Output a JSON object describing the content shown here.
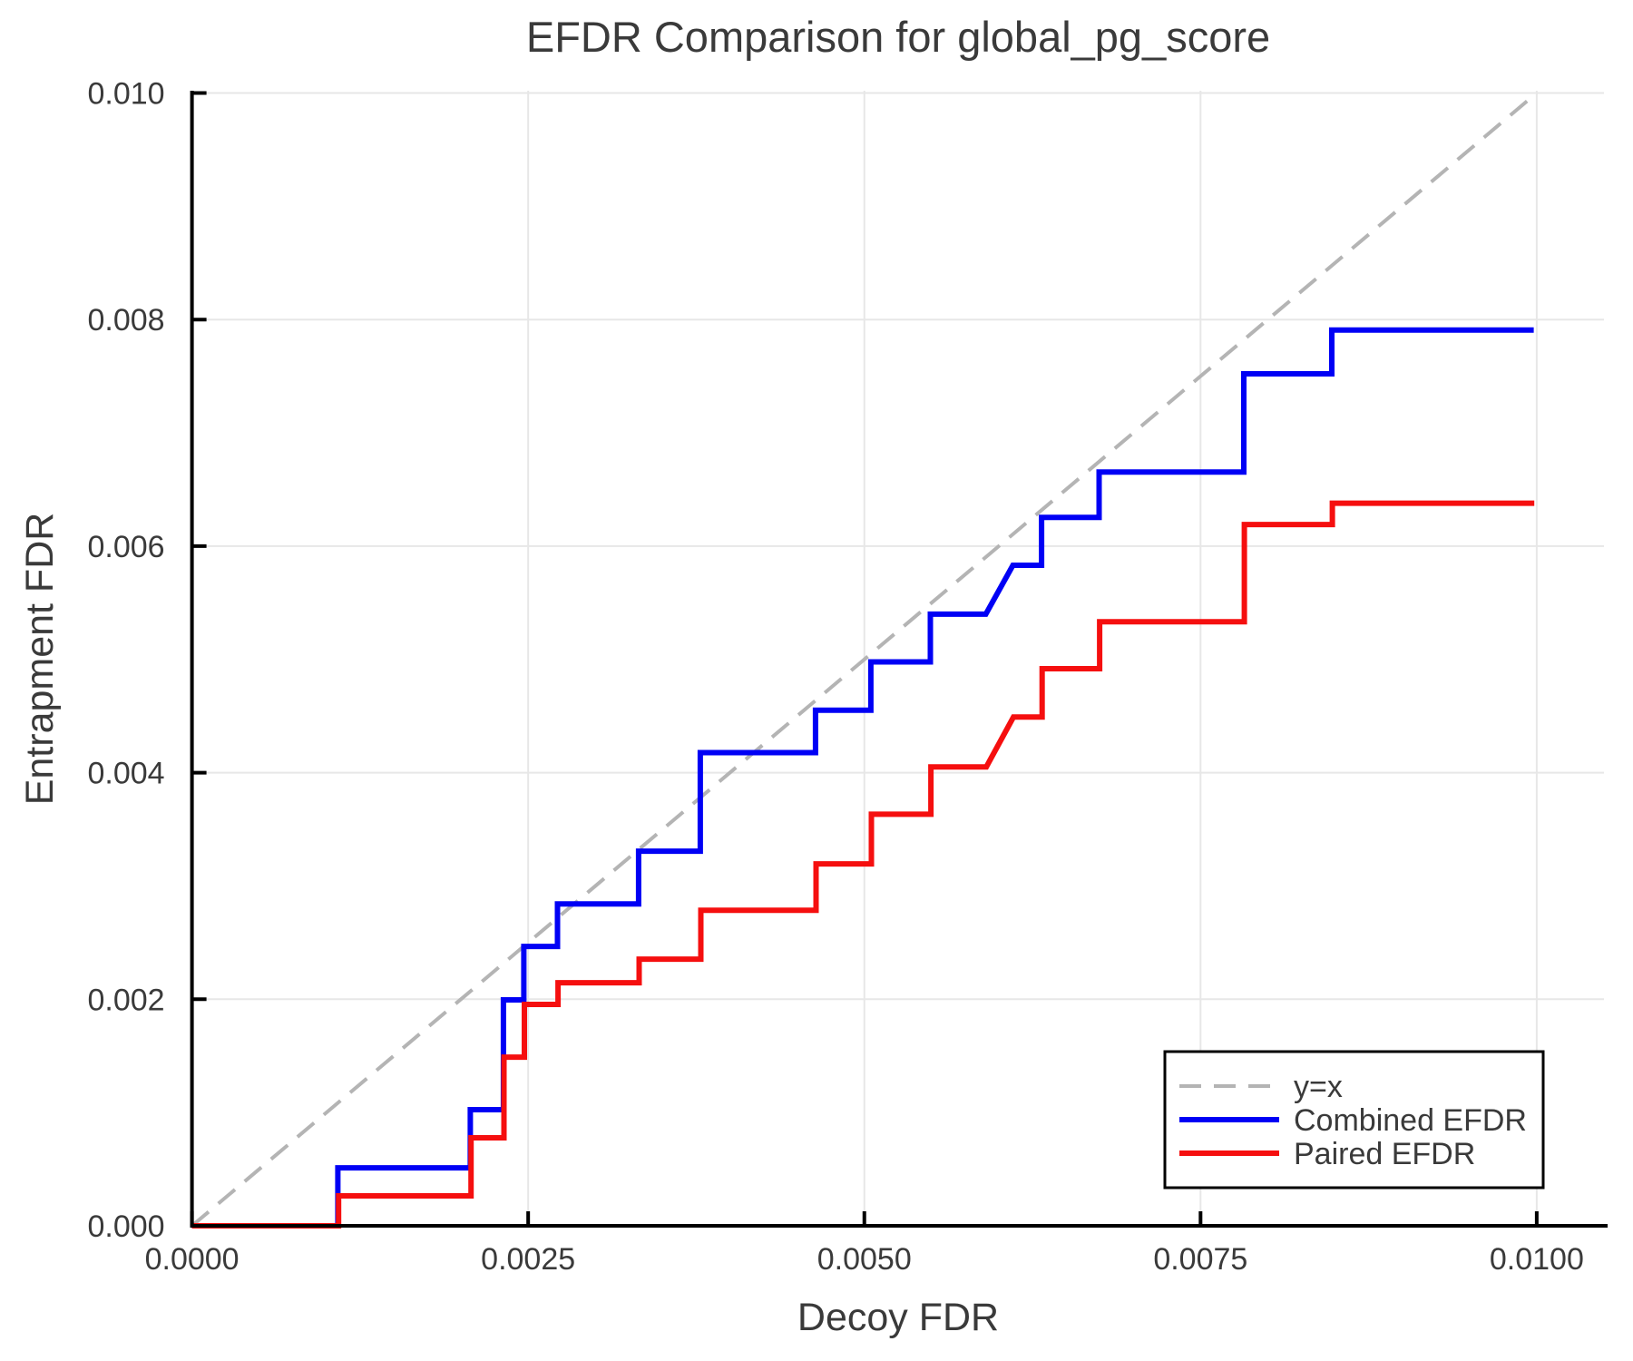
{
  "chart_data": {
    "type": "line",
    "subtype": "step",
    "title": "EFDR Comparison for global_pg_score",
    "xlabel": "Decoy FDR",
    "ylabel": "Entrapment FDR",
    "xlim": [
      0,
      0.0105
    ],
    "ylim": [
      0,
      0.01002
    ],
    "grid": true,
    "xticks": {
      "values": [
        0.0,
        0.0025,
        0.005,
        0.0075,
        0.01
      ],
      "labels": [
        "0.0000",
        "0.0025",
        "0.0050",
        "0.0075",
        "0.0100"
      ]
    },
    "yticks": {
      "values": [
        0.0,
        0.002,
        0.004,
        0.006,
        0.008,
        0.01
      ],
      "labels": [
        "0.000",
        "0.002",
        "0.004",
        "0.006",
        "0.008",
        "0.010"
      ]
    },
    "reference_line": {
      "key": "y-equals-x",
      "label": "y=x",
      "color": "#b4b4b4",
      "dashed": true,
      "points": [
        [
          0,
          0
        ],
        [
          0.01,
          0.01
        ]
      ]
    },
    "series": [
      {
        "key": "combined-efdr",
        "name": "Combined EFDR",
        "color": "#0000f5",
        "points": [
          [
            0,
            0
          ],
          [
            0.001085,
            0
          ],
          [
            0.001085,
            0.000512
          ],
          [
            0.00207,
            0.000512
          ],
          [
            0.00207,
            0.001025
          ],
          [
            0.002316,
            0.001025
          ],
          [
            0.002316,
            0.001994
          ],
          [
            0.002468,
            0.001994
          ],
          [
            0.002468,
            0.002466
          ],
          [
            0.002718,
            0.002466
          ],
          [
            0.002718,
            0.002842
          ],
          [
            0.003321,
            0.002842
          ],
          [
            0.003321,
            0.003307
          ],
          [
            0.00378,
            0.003307
          ],
          [
            0.00378,
            0.004177
          ],
          [
            0.004637,
            0.004177
          ],
          [
            0.004637,
            0.004551
          ],
          [
            0.005048,
            0.004551
          ],
          [
            0.005048,
            0.004978
          ],
          [
            0.005491,
            0.004978
          ],
          [
            0.005491,
            0.005399
          ],
          [
            0.005903,
            0.005399
          ],
          [
            0.006105,
            0.005831
          ],
          [
            0.006318,
            0.005831
          ],
          [
            0.006318,
            0.006253
          ],
          [
            0.006746,
            0.006253
          ],
          [
            0.006746,
            0.006654
          ],
          [
            0.007822,
            0.006654
          ],
          [
            0.007822,
            0.007521
          ],
          [
            0.008476,
            0.007521
          ],
          [
            0.008476,
            0.007908
          ],
          [
            0.009978,
            0.007908
          ]
        ]
      },
      {
        "key": "paired-efdr",
        "name": "Paired EFDR",
        "color": "#f50f0f",
        "points": [
          [
            0,
            0
          ],
          [
            0.00109,
            0
          ],
          [
            0.00109,
            0.000264
          ],
          [
            0.002075,
            0.000264
          ],
          [
            0.002075,
            0.000777
          ],
          [
            0.00232,
            0.000777
          ],
          [
            0.00232,
            0.001489
          ],
          [
            0.002472,
            0.001489
          ],
          [
            0.002472,
            0.001954
          ],
          [
            0.002722,
            0.001954
          ],
          [
            0.002722,
            0.002146
          ],
          [
            0.003325,
            0.002146
          ],
          [
            0.003325,
            0.002354
          ],
          [
            0.003784,
            0.002354
          ],
          [
            0.003784,
            0.002786
          ],
          [
            0.004641,
            0.002786
          ],
          [
            0.004641,
            0.003195
          ],
          [
            0.005052,
            0.003195
          ],
          [
            0.005052,
            0.003633
          ],
          [
            0.005495,
            0.003633
          ],
          [
            0.005495,
            0.004051
          ],
          [
            0.005907,
            0.004051
          ],
          [
            0.006109,
            0.004491
          ],
          [
            0.006322,
            0.004491
          ],
          [
            0.006322,
            0.004918
          ],
          [
            0.00675,
            0.004918
          ],
          [
            0.00675,
            0.005332
          ],
          [
            0.007826,
            0.005332
          ],
          [
            0.007826,
            0.006191
          ],
          [
            0.00848,
            0.006191
          ],
          [
            0.00848,
            0.006379
          ],
          [
            0.009982,
            0.006379
          ]
        ]
      }
    ],
    "legend": {
      "position": "lower-right",
      "entries": [
        {
          "key": "y-equals-x",
          "label": "y=x",
          "color": "#b4b4b4",
          "dash": true
        },
        {
          "key": "combined-efdr",
          "label": "Combined EFDR",
          "color": "#0000f5",
          "dash": false
        },
        {
          "key": "paired-efdr",
          "label": "Paired EFDR",
          "color": "#f50f0f",
          "dash": false
        }
      ]
    },
    "style": {
      "grid_color": "#e7e7e7",
      "spine_color": "#000000",
      "text_color": "#3a3a3a",
      "background": "#ffffff",
      "legend_border_color": "#000000",
      "legend_background": "#ffffff"
    }
  }
}
